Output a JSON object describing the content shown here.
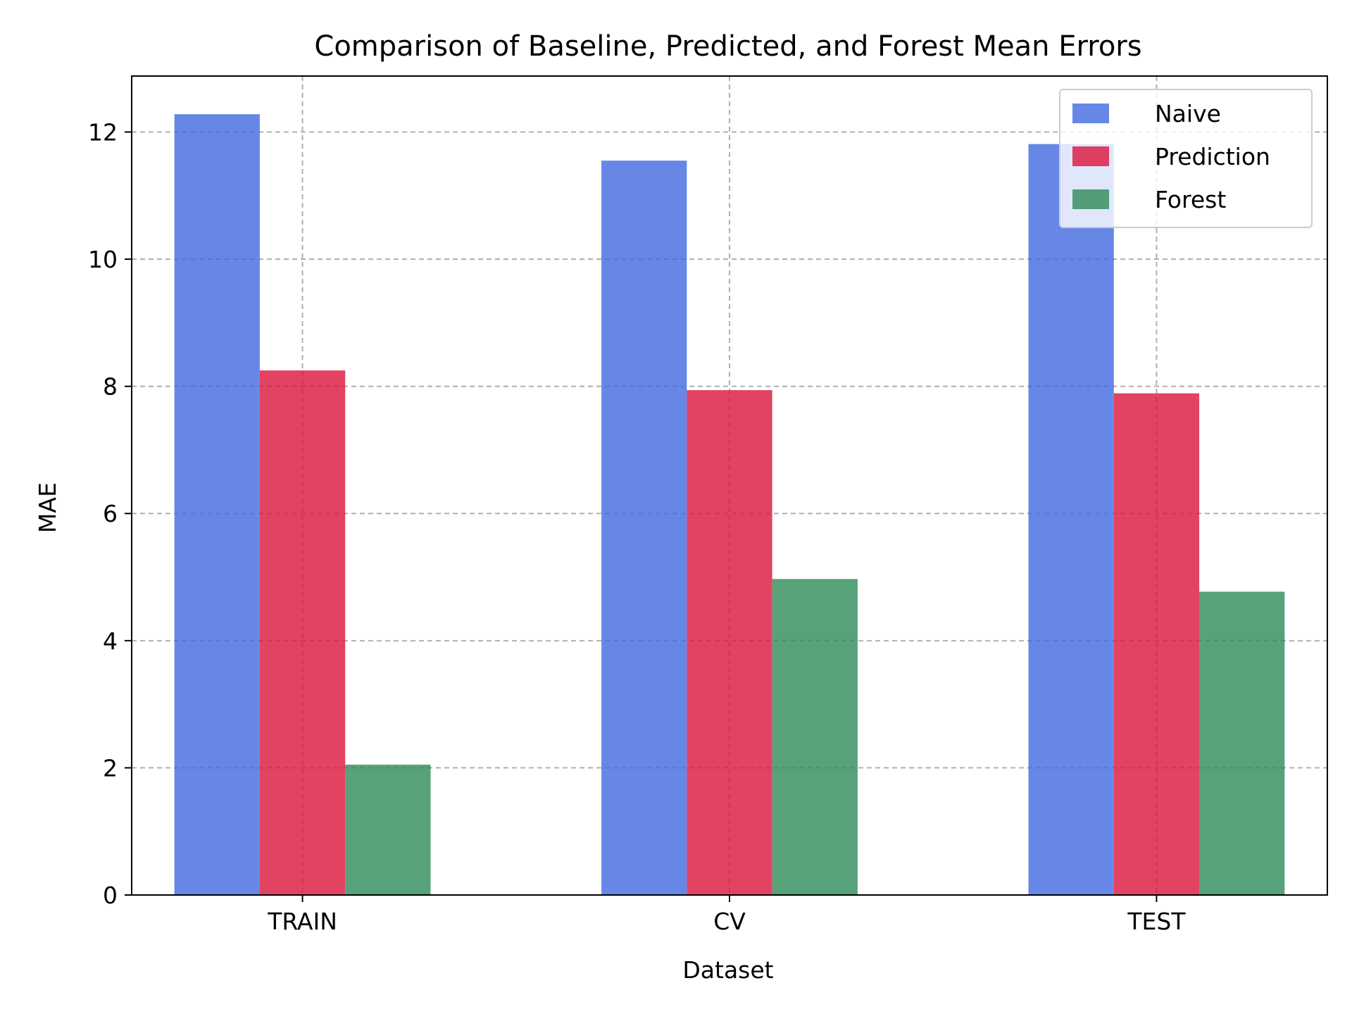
{
  "chart_data": {
    "type": "bar",
    "title": "Comparison of Baseline, Predicted, and Forest Mean Errors",
    "xlabel": "Dataset",
    "ylabel": "MAE",
    "categories": [
      "TRAIN",
      "CV",
      "TEST"
    ],
    "series": [
      {
        "name": "Naive",
        "values": [
          12.28,
          11.55,
          11.81
        ],
        "color": "#4169e1"
      },
      {
        "name": "Prediction",
        "values": [
          8.25,
          7.94,
          7.89
        ],
        "color": "#dc143c"
      },
      {
        "name": "Forest",
        "values": [
          2.05,
          4.97,
          4.77
        ],
        "color": "#2e8b57"
      }
    ],
    "bar_opacity": 0.8,
    "ylim": [
      0,
      12.88
    ],
    "yticks": [
      "0",
      "2",
      "4",
      "6",
      "8",
      "10",
      "12"
    ],
    "grid": true,
    "legend_position": "top-right"
  }
}
